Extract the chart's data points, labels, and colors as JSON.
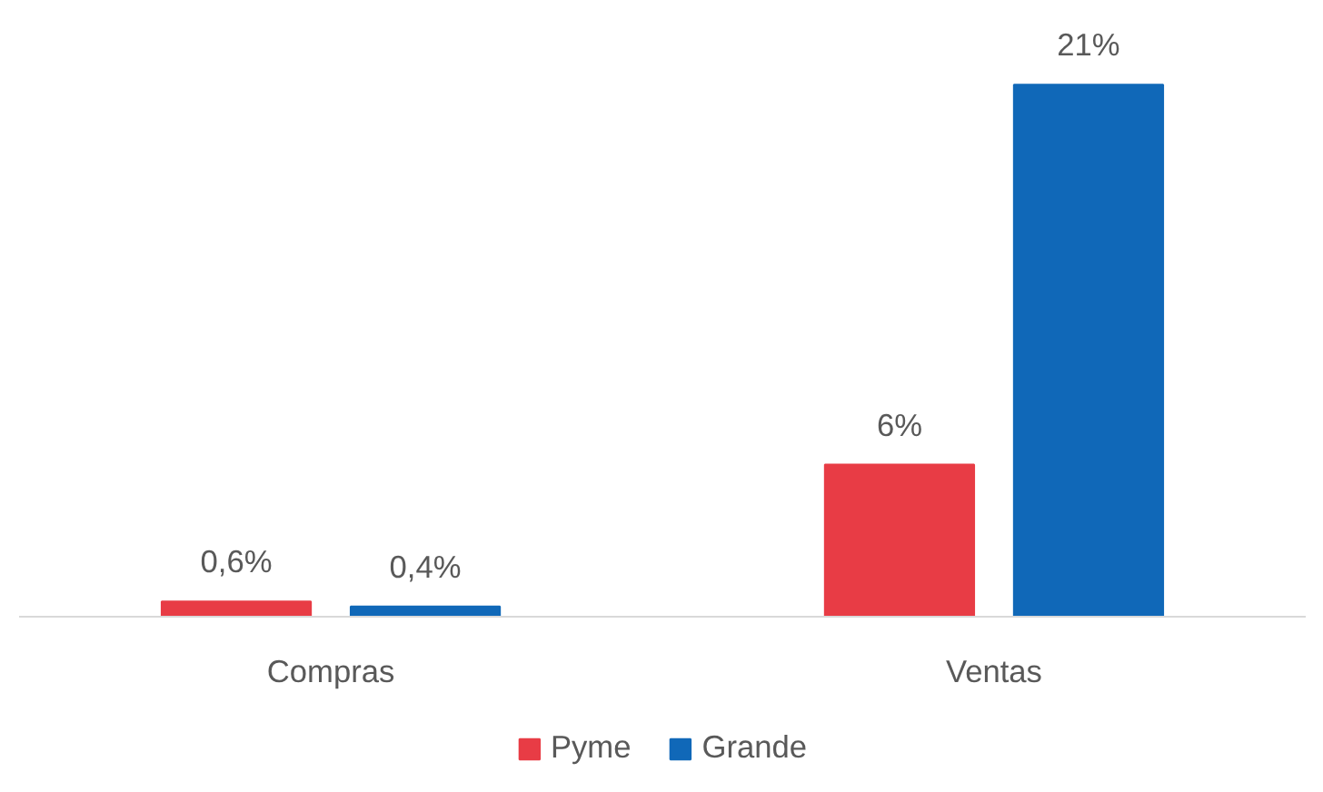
{
  "chart_data": {
    "type": "bar",
    "categories": [
      "Compras",
      "Ventas"
    ],
    "series": [
      {
        "name": "Pyme",
        "color": "#e83c45",
        "values": [
          0.6,
          6
        ],
        "value_labels": [
          "0,6%",
          "6%"
        ]
      },
      {
        "name": "Grande",
        "color": "#1068b8",
        "values": [
          0.4,
          21
        ],
        "value_labels": [
          "0,4%",
          "21%"
        ]
      }
    ],
    "legend": "bottom"
  }
}
